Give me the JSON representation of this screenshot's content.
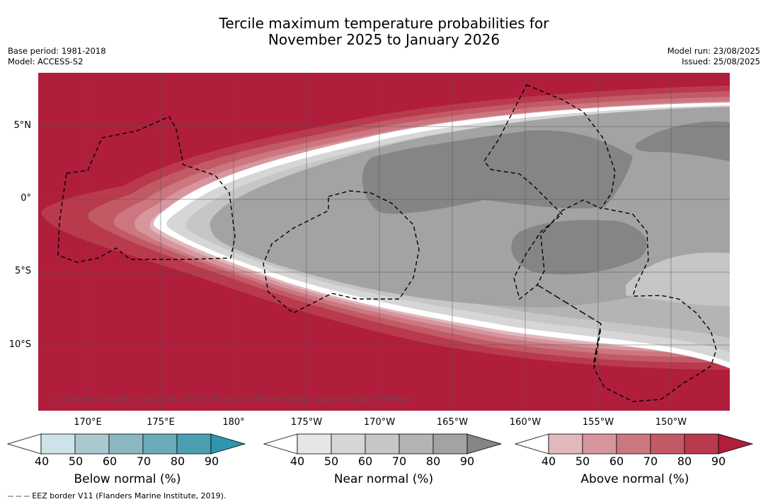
{
  "title": {
    "line1": "Tercile maximum temperature probabilities for",
    "line2": "November 2025 to January 2026"
  },
  "meta_left": {
    "base_period": "Base period: 1981-2018",
    "model": "Model: ACCESS-S2"
  },
  "meta_right": {
    "model_run": "Model run: 23/08/2025",
    "issued": "Issued: 25/08/2025"
  },
  "map": {
    "latitude_labels": [
      "5°N",
      "0°",
      "5°S",
      "10°S"
    ],
    "longitude_labels": [
      "170°E",
      "175°E",
      "180°",
      "175°W",
      "170°W",
      "165°W",
      "160°W",
      "155°W",
      "150°W"
    ],
    "copyright": "© Commonwealth of Australia 2025, Bureau of Meteorology, supported by COSPPac",
    "gridlines": true
  },
  "colorbars": [
    {
      "label": "Below normal (%)",
      "ticks": [
        "40",
        "50",
        "60",
        "70",
        "80",
        "90"
      ],
      "colors": [
        "#ffffff",
        "#cde3e9",
        "#a9c9cf",
        "#8ab7c1",
        "#6aabba",
        "#4aa0b2",
        "#2e96ad"
      ]
    },
    {
      "label": "Near normal (%)",
      "ticks": [
        "40",
        "50",
        "60",
        "70",
        "80",
        "90"
      ],
      "colors": [
        "#ffffff",
        "#e6e6e6",
        "#d6d6d6",
        "#c6c6c6",
        "#b4b4b4",
        "#a3a3a3",
        "#858585"
      ]
    },
    {
      "label": "Above normal (%)",
      "ticks": [
        "40",
        "50",
        "60",
        "70",
        "80",
        "90"
      ],
      "colors": [
        "#ffffff",
        "#e2b8bd",
        "#d7969d",
        "#cc7780",
        "#c25a66",
        "#b93a4d",
        "#b01e3b"
      ]
    }
  ],
  "footnote": "--  --  -- EEZ border V11 (Flanders Marine Institute, 2019)."
}
